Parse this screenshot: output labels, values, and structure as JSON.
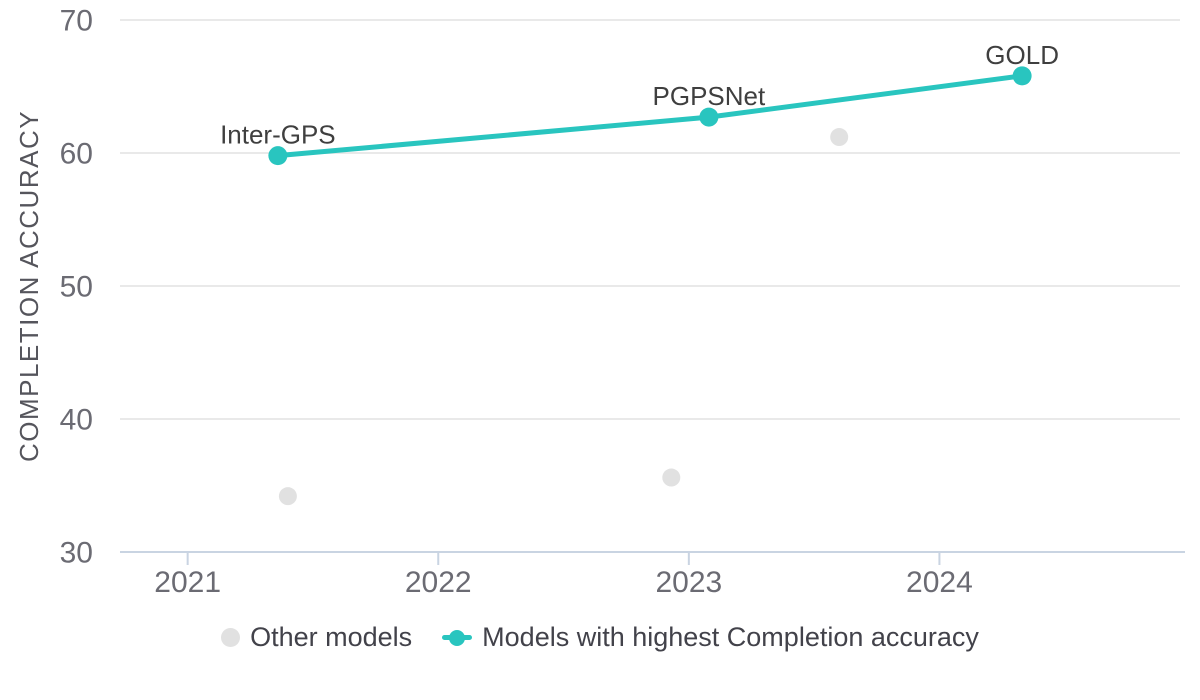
{
  "chart_data": {
    "type": "line",
    "title": "",
    "xlabel": "",
    "ylabel": "COMPLETION ACCURACY",
    "xlim": [
      2020.73,
      2024.96
    ],
    "ylim": [
      30,
      70
    ],
    "x_ticks": [
      "2021",
      "2022",
      "2023",
      "2024"
    ],
    "x_tick_values": [
      2021,
      2022,
      2023,
      2024
    ],
    "y_ticks": [
      "30",
      "40",
      "50",
      "60",
      "70"
    ],
    "y_tick_values": [
      30,
      40,
      50,
      60,
      70
    ],
    "grid": "horizontal gridlines on",
    "legend_position": "bottom-center",
    "series": [
      {
        "name": "Other models",
        "type": "scatter",
        "color": "#e1e1e1",
        "points": [
          {
            "x": 2021.4,
            "y": 34.2
          },
          {
            "x": 2022.93,
            "y": 35.6
          },
          {
            "x": 2023.6,
            "y": 61.2
          }
        ]
      },
      {
        "name": "Models with highest Completion accuracy",
        "type": "line+scatter",
        "color": "#29c5bf",
        "points": [
          {
            "x": 2021.36,
            "y": 59.8,
            "label": "Inter-GPS"
          },
          {
            "x": 2023.08,
            "y": 62.7,
            "label": "PGPSNet"
          },
          {
            "x": 2024.33,
            "y": 65.8,
            "label": "GOLD"
          }
        ]
      }
    ],
    "colors": {
      "background": "#ffffff",
      "axis_line": "#c9d4e2",
      "gridline": "#e9e9e9",
      "tick_text": "#6b6b73",
      "axis_title_text": "#55555c",
      "point_label_text": "#3f3f3f",
      "legend_text": "#42424a",
      "highlight_line": "#29c5bf",
      "other_models_dot": "#e1e1e1"
    }
  }
}
